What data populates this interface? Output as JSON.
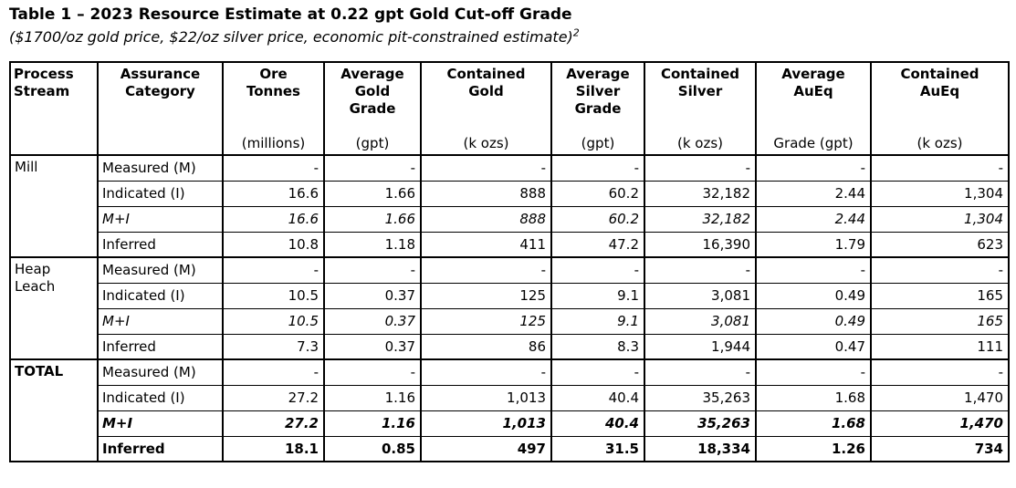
{
  "page": {
    "title": "Table 1 – 2023 Resource Estimate at 0.22 gpt Gold Cut-off Grade",
    "subtitle": "($1700/oz gold price, $22/oz silver price, economic pit-constrained estimate)",
    "subtitle_footnote": "2"
  },
  "table": {
    "columns": [
      {
        "name": "Process\nStream",
        "unit": ""
      },
      {
        "name": "Assurance\nCategory",
        "unit": ""
      },
      {
        "name": "Ore\nTonnes",
        "unit": "(millions)"
      },
      {
        "name": "Average\nGold\nGrade",
        "unit": "(gpt)"
      },
      {
        "name": "Contained\nGold",
        "unit": "(k ozs)"
      },
      {
        "name": "Average\nSilver\nGrade",
        "unit": "(gpt)"
      },
      {
        "name": "Contained\nSilver",
        "unit": "(k ozs)"
      },
      {
        "name": "Average\nAuEq",
        "unit": "Grade (gpt)"
      },
      {
        "name": "Contained\nAuEq",
        "unit": "(k ozs)"
      }
    ],
    "sections": [
      {
        "process_stream": "Mill",
        "process_stream_bold": false,
        "rows": [
          {
            "category": "Measured (M)",
            "style": "normal",
            "values": [
              "-",
              "-",
              "-",
              "-",
              "-",
              "-",
              "-"
            ]
          },
          {
            "category": "Indicated (I)",
            "style": "normal",
            "values": [
              "16.6",
              "1.66",
              "888",
              "60.2",
              "32,182",
              "2.44",
              "1,304"
            ]
          },
          {
            "category": "M+I",
            "style": "italic",
            "values": [
              "16.6",
              "1.66",
              "888",
              "60.2",
              "32,182",
              "2.44",
              "1,304"
            ]
          },
          {
            "category": "Inferred",
            "style": "normal",
            "values": [
              "10.8",
              "1.18",
              "411",
              "47.2",
              "16,390",
              "1.79",
              "623"
            ]
          }
        ]
      },
      {
        "process_stream": "Heap\nLeach",
        "process_stream_bold": false,
        "rows": [
          {
            "category": "Measured (M)",
            "style": "normal",
            "values": [
              "-",
              "-",
              "-",
              "-",
              "-",
              "-",
              "-"
            ]
          },
          {
            "category": "Indicated (I)",
            "style": "normal",
            "values": [
              "10.5",
              "0.37",
              "125",
              "9.1",
              "3,081",
              "0.49",
              "165"
            ]
          },
          {
            "category": "M+I",
            "style": "italic",
            "values": [
              "10.5",
              "0.37",
              "125",
              "9.1",
              "3,081",
              "0.49",
              "165"
            ]
          },
          {
            "category": "Inferred",
            "style": "normal",
            "values": [
              "7.3",
              "0.37",
              "86",
              "8.3",
              "1,944",
              "0.47",
              "111"
            ]
          }
        ]
      },
      {
        "process_stream": "TOTAL",
        "process_stream_bold": true,
        "rows": [
          {
            "category": "Measured (M)",
            "style": "normal",
            "values": [
              "-",
              "-",
              "-",
              "-",
              "-",
              "-",
              "-"
            ]
          },
          {
            "category": "Indicated (I)",
            "style": "normal",
            "values": [
              "27.2",
              "1.16",
              "1,013",
              "40.4",
              "35,263",
              "1.68",
              "1,470"
            ]
          },
          {
            "category": "M+I",
            "style": "bold-italic",
            "values": [
              "27.2",
              "1.16",
              "1,013",
              "40.4",
              "35,263",
              "1.68",
              "1,470"
            ]
          },
          {
            "category": "Inferred",
            "style": "bold",
            "values": [
              "18.1",
              "0.85",
              "497",
              "31.5",
              "18,334",
              "1.26",
              "734"
            ]
          }
        ]
      }
    ]
  }
}
